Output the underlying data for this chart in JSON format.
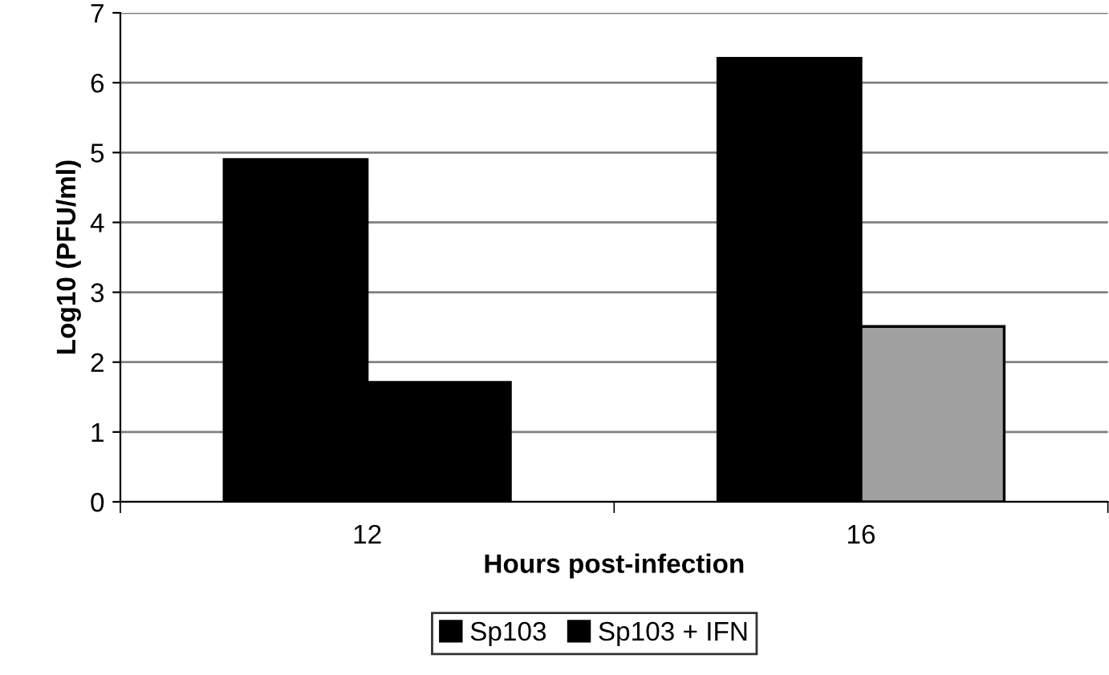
{
  "chart_data": {
    "type": "bar",
    "xlabel": "Hours post-infection",
    "ylabel": "Log10 (PFU/ml)",
    "categories": [
      "12",
      "16"
    ],
    "series": [
      {
        "name": "Sp103",
        "color": "#000000",
        "values": [
          4.9,
          6.35
        ]
      },
      {
        "name": "Sp103 + IFN",
        "color": "#000000",
        "colors": [
          "#000000",
          "#a0a0a0"
        ],
        "values": [
          1.71,
          2.51
        ]
      }
    ],
    "ylim": [
      0,
      7
    ],
    "yticks": [
      0,
      1,
      2,
      3,
      4,
      5,
      6,
      7
    ],
    "grid": "y",
    "legend": "bottom"
  }
}
